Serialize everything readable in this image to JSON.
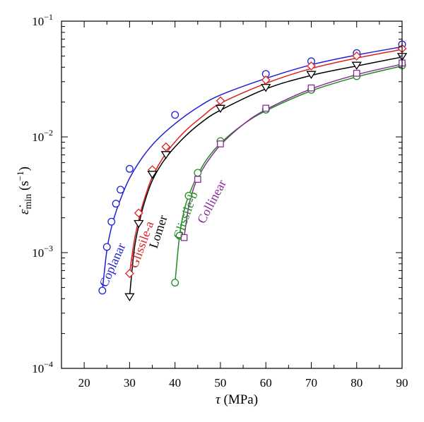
{
  "chart_data": {
    "type": "scatter",
    "title": "",
    "xlabel": {
      "symbol": "τ",
      "unit": " (MPa)"
    },
    "ylabel": {
      "symbol": "ε̇",
      "sub": "min",
      "unit": " (s",
      "exp": "−1",
      "close": ")"
    },
    "x_scale": "linear",
    "y_scale": "log",
    "xlim": [
      15,
      90
    ],
    "ylim": [
      0.0001,
      0.1
    ],
    "x_ticks": [
      20,
      30,
      40,
      50,
      60,
      70,
      80,
      90
    ],
    "x_tick_labels": [
      "20",
      "30",
      "40",
      "50",
      "60",
      "70",
      "80",
      "90"
    ],
    "y_ticks": [
      0.0001,
      0.001,
      0.01,
      0.1
    ],
    "y_tick_labels": [
      {
        "base": "10",
        "exp": "−4"
      },
      {
        "base": "10",
        "exp": "−3"
      },
      {
        "base": "10",
        "exp": "−2"
      },
      {
        "base": "10",
        "exp": "−1"
      }
    ],
    "grid": false,
    "legend": "inline labels",
    "series": [
      {
        "name": "Coplanar",
        "color": "#1f1fd6",
        "marker": "circle",
        "x": [
          24,
          25,
          26,
          27,
          28,
          30,
          40,
          60,
          70,
          80,
          90
        ],
        "y": [
          0.00047,
          0.00112,
          0.00185,
          0.00265,
          0.0035,
          0.0053,
          0.0155,
          0.035,
          0.045,
          0.053,
          0.063
        ],
        "fit_x": [
          24,
          25,
          26,
          27,
          28,
          30,
          33,
          36,
          40,
          45,
          50,
          60,
          70,
          80,
          90
        ],
        "fit_y": [
          0.00047,
          0.00105,
          0.00165,
          0.00225,
          0.0029,
          0.0044,
          0.0068,
          0.0094,
          0.013,
          0.018,
          0.023,
          0.032,
          0.042,
          0.051,
          0.06
        ]
      },
      {
        "name": "Glissile-a",
        "color": "#e02020",
        "marker": "diamond",
        "x": [
          30,
          32,
          35,
          38,
          50,
          60,
          70,
          80,
          90
        ],
        "y": [
          0.00066,
          0.0022,
          0.0052,
          0.0082,
          0.0205,
          0.031,
          0.041,
          0.05,
          0.058
        ],
        "fit_x": [
          30,
          31,
          32,
          33,
          35,
          38,
          42,
          46,
          50,
          60,
          70,
          80,
          90
        ],
        "fit_y": [
          0.00066,
          0.00125,
          0.0019,
          0.0027,
          0.0045,
          0.0072,
          0.011,
          0.015,
          0.0195,
          0.029,
          0.039,
          0.048,
          0.057
        ]
      },
      {
        "name": "Lomer",
        "color": "#000000",
        "marker": "triangle-down",
        "x": [
          30,
          32,
          35,
          38,
          50,
          60,
          70,
          80,
          90
        ],
        "y": [
          0.00042,
          0.0018,
          0.0048,
          0.0071,
          0.0178,
          0.027,
          0.035,
          0.042,
          0.05
        ],
        "fit_x": [
          30,
          31,
          32,
          33,
          35,
          38,
          42,
          46,
          50,
          60,
          70,
          80,
          90
        ],
        "fit_y": [
          0.00042,
          0.00105,
          0.0017,
          0.0025,
          0.0042,
          0.0066,
          0.0099,
          0.0135,
          0.017,
          0.026,
          0.034,
          0.041,
          0.049
        ]
      },
      {
        "name": "Glissile-b",
        "color": "#1e8c1e",
        "marker": "circle",
        "x": [
          40,
          41,
          43,
          45,
          50,
          60,
          70,
          80,
          90
        ],
        "y": [
          0.00055,
          0.0014,
          0.0031,
          0.0049,
          0.0092,
          0.0172,
          0.0255,
          0.0335,
          0.0415
        ],
        "fit_x": [
          40,
          41,
          42,
          43,
          45,
          47,
          50,
          55,
          60,
          70,
          80,
          90
        ],
        "fit_y": [
          0.00055,
          0.0014,
          0.0023,
          0.0031,
          0.0047,
          0.0064,
          0.0088,
          0.0128,
          0.0168,
          0.025,
          0.033,
          0.041
        ]
      },
      {
        "name": "Collinear",
        "color": "#8a2a9c",
        "marker": "square",
        "x": [
          42,
          45,
          50,
          60,
          70,
          80,
          90
        ],
        "y": [
          0.00135,
          0.0043,
          0.0087,
          0.0177,
          0.0265,
          0.0355,
          0.0435
        ],
        "fit_x": [
          42,
          43,
          44,
          45,
          47,
          50,
          55,
          60,
          70,
          80,
          90
        ],
        "fit_y": [
          0.00135,
          0.0025,
          0.0035,
          0.0044,
          0.006,
          0.0085,
          0.0128,
          0.0172,
          0.026,
          0.0345,
          0.0425
        ]
      }
    ]
  }
}
